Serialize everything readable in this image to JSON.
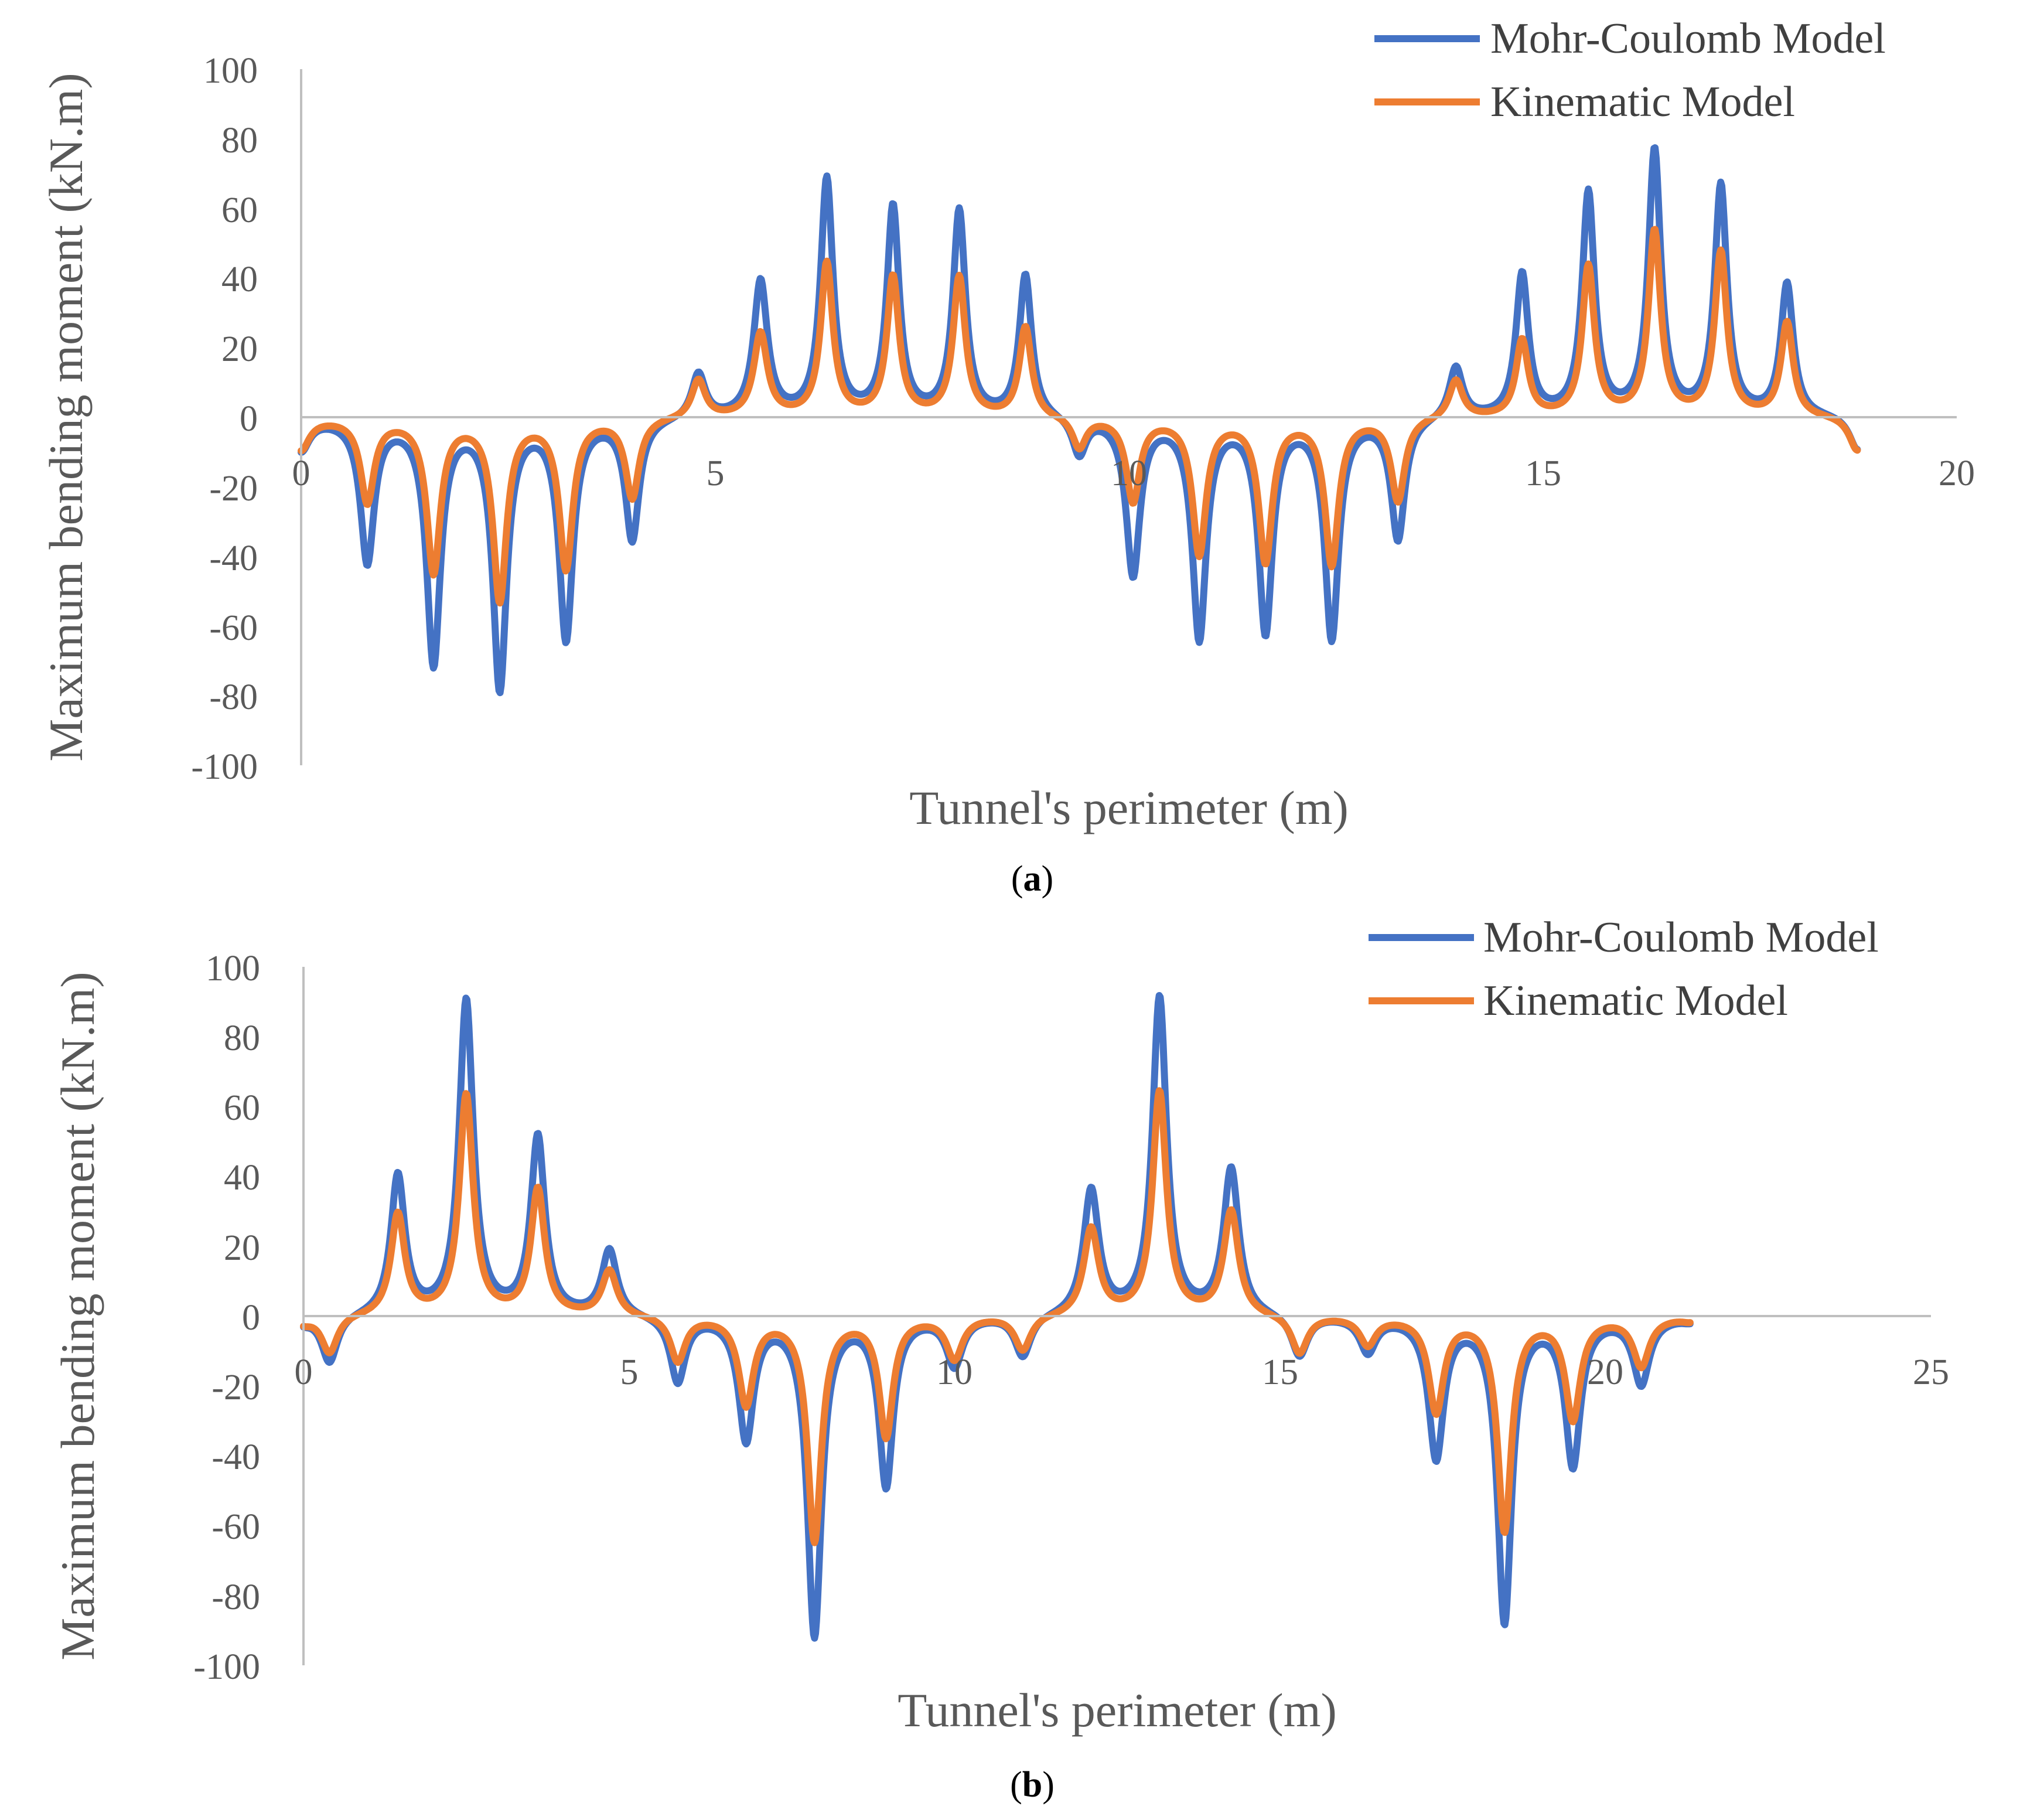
{
  "colors": {
    "mohr_coulomb": "#4472C4",
    "kinematic": "#ED7D31",
    "axis": "#BFBFBF",
    "text": "#595959"
  },
  "chart_data": [
    {
      "type": "line",
      "panel_label": "a",
      "xlabel": "Tunnel's perimeter (m)",
      "ylabel": "Maximum bending moment (kN.m)",
      "xlim": [
        0,
        20
      ],
      "ylim": [
        -100,
        100
      ],
      "xticks": [
        0,
        5,
        10,
        15,
        20
      ],
      "yticks": [
        100,
        80,
        60,
        40,
        20,
        0,
        -20,
        -40,
        -60,
        -80,
        -100
      ],
      "grid": false,
      "legend": "top-right",
      "x_end": 18.8,
      "series": [
        {
          "name": "Mohr-Coulomb Model",
          "color": "#4472C4",
          "peaks": [
            [
              0.0,
              -9,
              0.12
            ],
            [
              0.8,
              -41,
              0.1
            ],
            [
              1.6,
              -70,
              0.1
            ],
            [
              2.4,
              -77,
              0.1
            ],
            [
              3.2,
              -63,
              0.1
            ],
            [
              4.0,
              -35,
              0.1
            ],
            [
              4.8,
              13,
              0.1
            ],
            [
              5.55,
              39,
              0.1
            ],
            [
              6.35,
              68,
              0.09
            ],
            [
              7.15,
              60,
              0.09
            ],
            [
              7.95,
              59,
              0.09
            ],
            [
              8.75,
              41,
              0.09
            ],
            [
              9.4,
              -11,
              0.1
            ],
            [
              10.05,
              -45,
              0.1
            ],
            [
              10.85,
              -63,
              0.1
            ],
            [
              11.65,
              -61,
              0.1
            ],
            [
              12.45,
              -63,
              0.1
            ],
            [
              13.25,
              -35,
              0.1
            ],
            [
              13.95,
              15,
              0.1
            ],
            [
              14.75,
              41,
              0.09
            ],
            [
              15.55,
              64,
              0.09
            ],
            [
              16.35,
              76,
              0.09
            ],
            [
              17.15,
              66,
              0.09
            ],
            [
              17.95,
              38,
              0.09
            ],
            [
              18.8,
              -10,
              0.12
            ]
          ]
        },
        {
          "name": "Kinematic Model",
          "color": "#ED7D31",
          "peaks": [
            [
              0.0,
              -9,
              0.12
            ],
            [
              0.8,
              -24,
              0.1
            ],
            [
              1.6,
              -44,
              0.1
            ],
            [
              2.4,
              -52,
              0.1
            ],
            [
              3.2,
              -43,
              0.1
            ],
            [
              4.0,
              -23,
              0.1
            ],
            [
              4.8,
              11,
              0.1
            ],
            [
              5.55,
              24,
              0.1
            ],
            [
              6.35,
              44,
              0.09
            ],
            [
              7.15,
              40,
              0.09
            ],
            [
              7.95,
              40,
              0.09
            ],
            [
              8.75,
              26,
              0.09
            ],
            [
              9.4,
              -9,
              0.1
            ],
            [
              10.05,
              -24,
              0.1
            ],
            [
              10.85,
              -39,
              0.1
            ],
            [
              11.65,
              -41,
              0.1
            ],
            [
              12.45,
              -42,
              0.1
            ],
            [
              13.25,
              -24,
              0.1
            ],
            [
              13.95,
              11,
              0.1
            ],
            [
              14.75,
              22,
              0.09
            ],
            [
              15.55,
              43,
              0.09
            ],
            [
              16.35,
              53,
              0.09
            ],
            [
              17.15,
              47,
              0.09
            ],
            [
              17.95,
              27,
              0.09
            ],
            [
              18.8,
              -10,
              0.12
            ]
          ]
        }
      ]
    },
    {
      "type": "line",
      "panel_label": "b",
      "xlabel": "Tunnel's perimeter (m)",
      "ylabel": "Maximum bending moment (kN.m)",
      "xlim": [
        0,
        25
      ],
      "ylim": [
        -100,
        100
      ],
      "xticks": [
        0,
        5,
        10,
        15,
        20,
        25
      ],
      "yticks": [
        100,
        80,
        60,
        40,
        20,
        0,
        -20,
        -40,
        -60,
        -80,
        -100
      ],
      "grid": false,
      "legend": "top-right",
      "x_end": 21.3,
      "series": [
        {
          "name": "Mohr-Coulomb Model",
          "color": "#4472C4",
          "peaks": [
            [
              0.0,
              -2,
              0.15
            ],
            [
              0.4,
              -14,
              0.15
            ],
            [
              1.45,
              40,
              0.13
            ],
            [
              2.5,
              90,
              0.13
            ],
            [
              3.6,
              51,
              0.13
            ],
            [
              4.7,
              19,
              0.14
            ],
            [
              5.75,
              -19,
              0.14
            ],
            [
              6.8,
              -35,
              0.14
            ],
            [
              7.85,
              -91,
              0.13
            ],
            [
              8.95,
              -48,
              0.13
            ],
            [
              10.0,
              -14,
              0.15
            ],
            [
              11.05,
              -12,
              0.15
            ],
            [
              12.1,
              36,
              0.14
            ],
            [
              13.15,
              91,
              0.13
            ],
            [
              14.25,
              42,
              0.14
            ],
            [
              15.3,
              -12,
              0.15
            ],
            [
              16.35,
              -10,
              0.15
            ],
            [
              17.4,
              -40,
              0.14
            ],
            [
              18.45,
              -87,
              0.13
            ],
            [
              19.5,
              -42,
              0.14
            ],
            [
              20.55,
              -19,
              0.15
            ],
            [
              21.3,
              -1,
              0.15
            ]
          ]
        },
        {
          "name": "Kinematic Model",
          "color": "#ED7D31",
          "peaks": [
            [
              0.0,
              -2,
              0.15
            ],
            [
              0.4,
              -11,
              0.15
            ],
            [
              1.45,
              29,
              0.13
            ],
            [
              2.5,
              63,
              0.13
            ],
            [
              3.6,
              36,
              0.13
            ],
            [
              4.7,
              13,
              0.14
            ],
            [
              5.75,
              -13,
              0.14
            ],
            [
              6.8,
              -25,
              0.14
            ],
            [
              7.85,
              -64,
              0.13
            ],
            [
              8.95,
              -34,
              0.13
            ],
            [
              10.0,
              -12,
              0.15
            ],
            [
              11.05,
              -10,
              0.15
            ],
            [
              12.1,
              25,
              0.14
            ],
            [
              13.15,
              64,
              0.13
            ],
            [
              14.25,
              30,
              0.14
            ],
            [
              15.3,
              -11,
              0.15
            ],
            [
              16.35,
              -8,
              0.15
            ],
            [
              17.4,
              -27,
              0.14
            ],
            [
              18.45,
              -61,
              0.13
            ],
            [
              19.5,
              -29,
              0.14
            ],
            [
              20.55,
              -14,
              0.15
            ],
            [
              21.3,
              -1,
              0.15
            ]
          ]
        }
      ]
    }
  ]
}
